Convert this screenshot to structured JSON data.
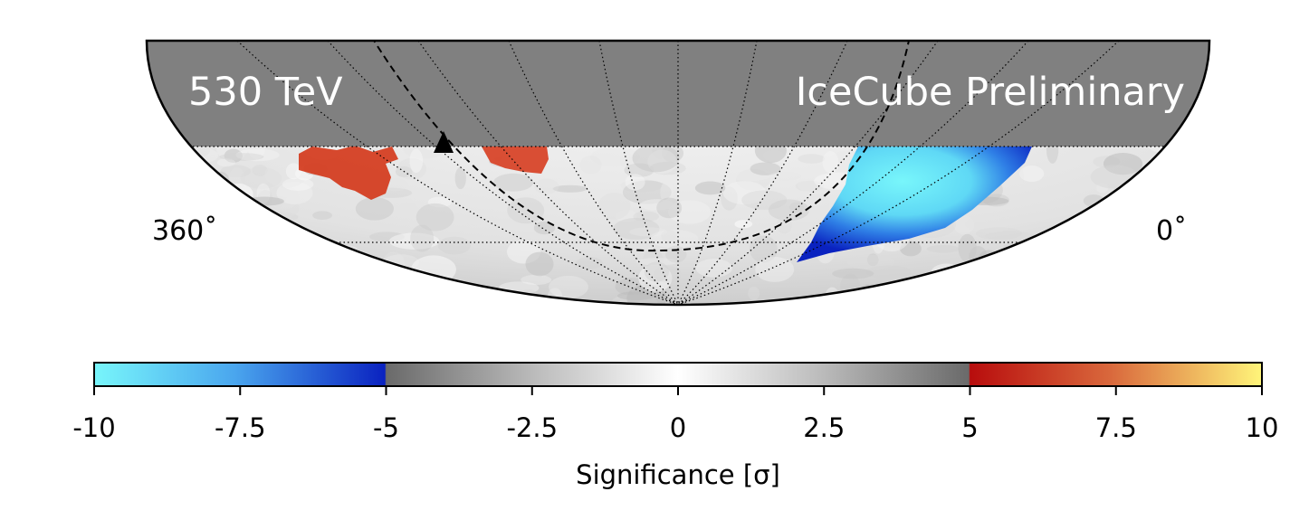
{
  "chart_data": {
    "type": "heatmap",
    "projection": "hammer-aitoff (southern hemisphere half)",
    "energy_label": "530 TeV",
    "watermark": "IceCube Preliminary",
    "ra_left_label": "360˚",
    "ra_right_label": "0˚",
    "ra_range": [
      360,
      0
    ],
    "dec_range": [
      -90,
      -25
    ],
    "masked_region": "dec > -25 (grey, no data)",
    "colorbar": {
      "label": "Significance [σ]",
      "range": [
        -10,
        10
      ],
      "ticks": [
        -10,
        -7.5,
        -5,
        -2.5,
        0,
        2.5,
        5,
        7.5,
        10
      ],
      "tick_labels": [
        "-10",
        "-7.5",
        "-5",
        "-2.5",
        "0",
        "2.5",
        "5",
        "7.5",
        "10"
      ]
    },
    "regions": [
      {
        "name": "excess-region-west",
        "sign": "excess",
        "significance": [
          5,
          6.5
        ]
      },
      {
        "name": "excess-region-east",
        "sign": "excess",
        "significance": [
          5,
          6.5
        ]
      },
      {
        "name": "deficit-region",
        "sign": "deficit",
        "significance": [
          -10,
          -5
        ]
      }
    ],
    "markers": [
      {
        "name": "galactic-center",
        "shape": "triangle"
      }
    ],
    "overlays": [
      {
        "name": "galactic-plane",
        "style": "dashed"
      }
    ],
    "grid": true
  },
  "colors": {
    "masked": "#808080",
    "frame": "#000000",
    "excess": "#d43a1c",
    "deficit_dark": "#0a22c0",
    "deficit_light": "#78f6fb",
    "text_overlay": "#ffffff"
  }
}
